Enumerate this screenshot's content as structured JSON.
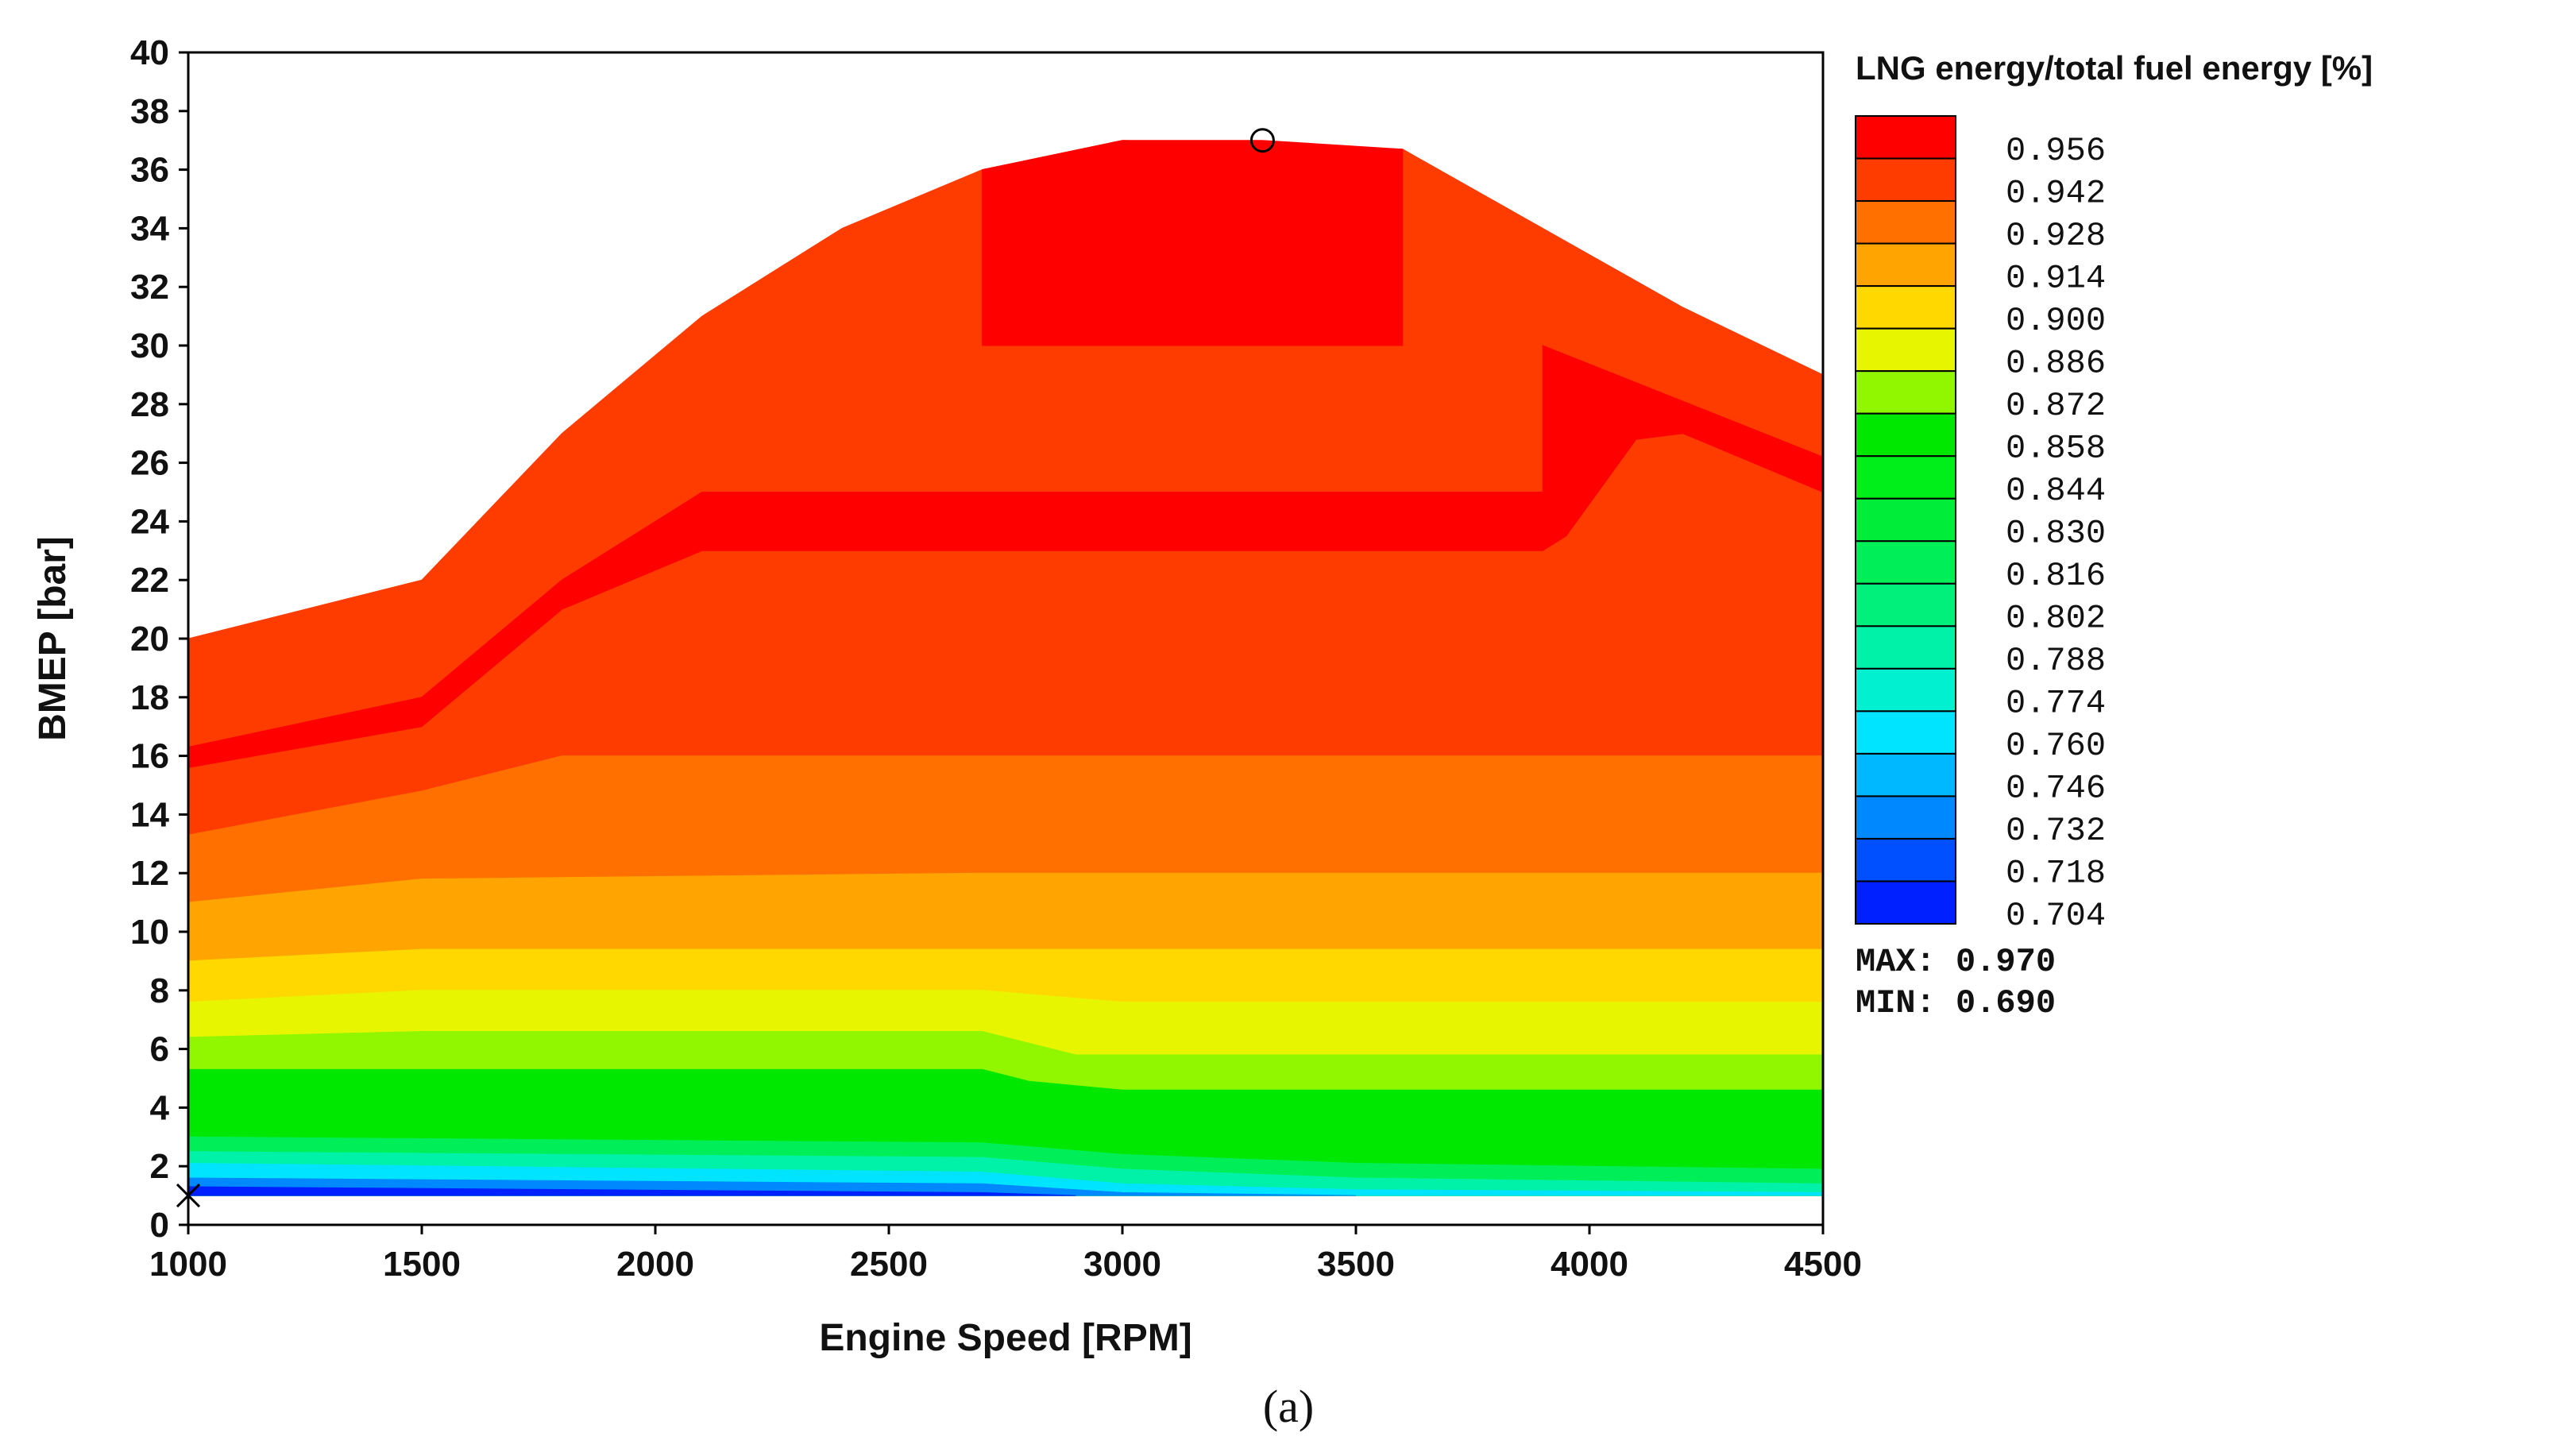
{
  "chart_data": {
    "type": "heatmap",
    "subtype": "filled-contour",
    "caption": "(a)",
    "xlabel": "Engine Speed [RPM]",
    "ylabel": "BMEP [bar]",
    "xlim": [
      1000,
      4500
    ],
    "ylim": [
      0,
      40
    ],
    "xticks": [
      "1000",
      "1500",
      "2000",
      "2500",
      "3000",
      "3500",
      "4000",
      "4500"
    ],
    "yticks": [
      "0",
      "2",
      "4",
      "6",
      "8",
      "10",
      "12",
      "14",
      "16",
      "18",
      "20",
      "22",
      "24",
      "26",
      "28",
      "30",
      "32",
      "34",
      "36",
      "38",
      "40"
    ],
    "colorbar": {
      "title": "LNG energy/total fuel energy [%]",
      "levels": [
        "0.956",
        "0.942",
        "0.928",
        "0.914",
        "0.900",
        "0.886",
        "0.872",
        "0.858",
        "0.844",
        "0.830",
        "0.816",
        "0.802",
        "0.788",
        "0.774",
        "0.760",
        "0.746",
        "0.732",
        "0.718",
        "0.704"
      ],
      "colors": [
        "#ff0000",
        "#ff3c00",
        "#ff7000",
        "#ffa400",
        "#ffd800",
        "#e8f500",
        "#90f700",
        "#00e800",
        "#00ef1a",
        "#00ee3a",
        "#00ef58",
        "#00f07c",
        "#00f2a8",
        "#00f0d0",
        "#00e4ff",
        "#00b8ff",
        "#0088ff",
        "#0050ff",
        "#0020ff"
      ],
      "max_label": "MAX: 0.970",
      "min_label": "MIN: 0.690"
    },
    "regions": [
      {
        "color": "#ff3c00",
        "pts": [
          [
            1000,
            20
          ],
          [
            1500,
            22
          ],
          [
            1800,
            27
          ],
          [
            2100,
            31
          ],
          [
            2400,
            34
          ],
          [
            2700,
            36
          ],
          [
            3000,
            37
          ],
          [
            3600,
            36.7
          ],
          [
            3900,
            34
          ],
          [
            4200,
            31.3
          ],
          [
            4500,
            29
          ],
          [
            4500,
            1
          ],
          [
            1000,
            1
          ]
        ]
      },
      {
        "color": "#ff0000",
        "pts": [
          [
            2700,
            36
          ],
          [
            3000,
            37
          ],
          [
            3300,
            37
          ],
          [
            3600,
            36.7
          ],
          [
            3600,
            30
          ],
          [
            2700,
            30
          ]
        ]
      },
      {
        "color": "#ff0000",
        "pts": [
          [
            1000,
            16.3
          ],
          [
            1500,
            18
          ],
          [
            1800,
            22
          ],
          [
            2100,
            25
          ],
          [
            3900,
            25
          ],
          [
            3900,
            30
          ],
          [
            4500,
            26.2
          ],
          [
            4500,
            25
          ],
          [
            4200,
            27
          ],
          [
            4100,
            26.8
          ],
          [
            3950,
            23.5
          ],
          [
            3900,
            23
          ],
          [
            2100,
            23
          ],
          [
            1800,
            21
          ],
          [
            1500,
            17
          ],
          [
            1000,
            15.6
          ]
        ]
      },
      {
        "color": "#ff7000",
        "pts": [
          [
            1000,
            13.3
          ],
          [
            1500,
            14.8
          ],
          [
            1800,
            16
          ],
          [
            4500,
            16
          ],
          [
            4500,
            1
          ],
          [
            1000,
            1
          ]
        ]
      },
      {
        "color": "#ffa400",
        "pts": [
          [
            1000,
            11
          ],
          [
            1500,
            11.8
          ],
          [
            2700,
            12
          ],
          [
            4500,
            12
          ],
          [
            4500,
            1
          ],
          [
            1000,
            1
          ]
        ]
      },
      {
        "color": "#ffd800",
        "pts": [
          [
            1000,
            9
          ],
          [
            1500,
            9.4
          ],
          [
            2700,
            9.4
          ],
          [
            3000,
            9.4
          ],
          [
            4500,
            9.4
          ],
          [
            4500,
            1
          ],
          [
            1000,
            1
          ]
        ]
      },
      {
        "color": "#e8f500",
        "pts": [
          [
            1000,
            7.6
          ],
          [
            1500,
            8
          ],
          [
            2700,
            8
          ],
          [
            3000,
            7.6
          ],
          [
            4500,
            7.6
          ],
          [
            4500,
            1
          ],
          [
            1000,
            1
          ]
        ]
      },
      {
        "color": "#90f700",
        "pts": [
          [
            1000,
            6.4
          ],
          [
            1500,
            6.6
          ],
          [
            2700,
            6.6
          ],
          [
            2900,
            5.8
          ],
          [
            4500,
            5.8
          ],
          [
            4500,
            1
          ],
          [
            1000,
            1
          ]
        ]
      },
      {
        "color": "#00e800",
        "pts": [
          [
            1000,
            5.3
          ],
          [
            2700,
            5.3
          ],
          [
            2800,
            4.9
          ],
          [
            3000,
            4.6
          ],
          [
            4500,
            4.6
          ],
          [
            4500,
            1
          ],
          [
            1000,
            1
          ]
        ]
      },
      {
        "color": "#00ef58",
        "pts": [
          [
            1000,
            3
          ],
          [
            2700,
            2.8
          ],
          [
            3000,
            2.4
          ],
          [
            3500,
            2.1
          ],
          [
            4500,
            1.9
          ],
          [
            4500,
            1
          ],
          [
            1000,
            1
          ]
        ]
      },
      {
        "color": "#00f2a8",
        "pts": [
          [
            1000,
            2.5
          ],
          [
            2700,
            2.3
          ],
          [
            3000,
            1.9
          ],
          [
            3500,
            1.6
          ],
          [
            4500,
            1.4
          ],
          [
            4500,
            1
          ],
          [
            1000,
            1
          ]
        ]
      },
      {
        "color": "#00e4ff",
        "pts": [
          [
            1000,
            2.1
          ],
          [
            2700,
            1.8
          ],
          [
            3000,
            1.4
          ],
          [
            3500,
            1.2
          ],
          [
            4500,
            1.1
          ],
          [
            4500,
            1
          ],
          [
            1000,
            1
          ]
        ]
      },
      {
        "color": "#0088ff",
        "pts": [
          [
            1000,
            1.6
          ],
          [
            2700,
            1.4
          ],
          [
            3000,
            1.1
          ],
          [
            3500,
            1
          ],
          [
            1000,
            1
          ]
        ]
      },
      {
        "color": "#0020ff",
        "pts": [
          [
            1000,
            1.3
          ],
          [
            2700,
            1.1
          ],
          [
            2900,
            1
          ],
          [
            1000,
            1
          ]
        ]
      }
    ],
    "max_point": {
      "x": 3300,
      "y": 37,
      "marker": "circle"
    },
    "min_point": {
      "x": 1000,
      "y": 1,
      "marker": "cross"
    }
  }
}
